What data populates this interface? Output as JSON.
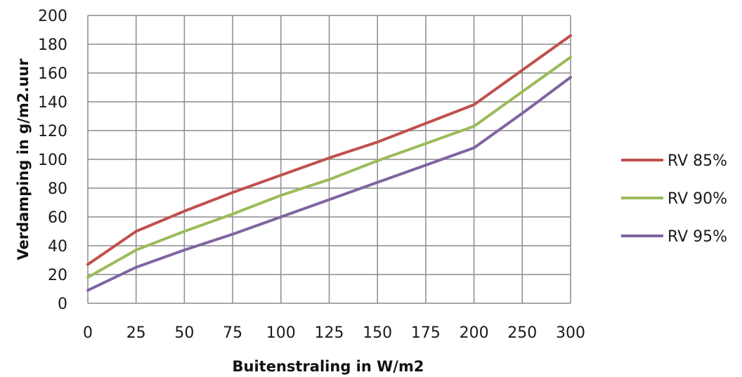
{
  "chart_data": {
    "type": "line",
    "xlabel": "Buitenstraling in W/m2",
    "ylabel": "Verdamping in g/m2.uur",
    "categories": [
      "0",
      "25",
      "50",
      "75",
      "100",
      "125",
      "150",
      "175",
      "200",
      "250",
      "300"
    ],
    "ylim": [
      0,
      200
    ],
    "yticks": [
      "0",
      "20",
      "40",
      "60",
      "80",
      "100",
      "120",
      "140",
      "160",
      "180",
      "200"
    ],
    "grid": true,
    "legend_position": "right",
    "series": [
      {
        "name": "RV 85%",
        "color": "#c0504d",
        "values": [
          27,
          50,
          64,
          77,
          89,
          101,
          112,
          125,
          138,
          162,
          186
        ]
      },
      {
        "name": "RV 90%",
        "color": "#9bbb59",
        "values": [
          18,
          37,
          50,
          62,
          75,
          86,
          99,
          111,
          123,
          147,
          171
        ]
      },
      {
        "name": "RV 95%",
        "color": "#8064a2",
        "values": [
          9,
          25,
          37,
          48,
          60,
          72,
          84,
          96,
          108,
          132,
          157
        ]
      }
    ]
  }
}
